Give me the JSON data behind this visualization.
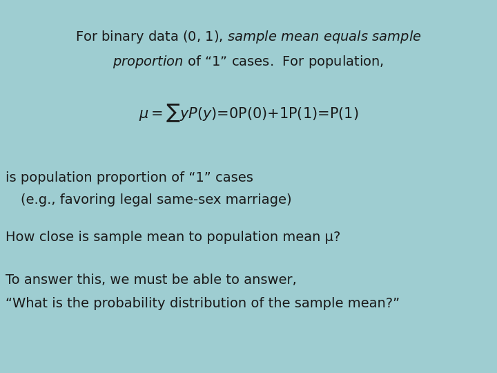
{
  "background_color": "#9ECDD1",
  "line3": "is population proportion of “1” cases",
  "line4": "    (e.g., favoring legal same-sex marriage)",
  "line5": "How close is sample mean to population mean μ?",
  "line6": "To answer this, we must be able to answer,",
  "line7": "“What is the probability distribution of the sample mean?”",
  "text_color": "#1a1a1a",
  "font_size_main": 14,
  "font_size_formula": 15,
  "fig_width": 7.2,
  "fig_height": 5.4,
  "dpi": 100
}
